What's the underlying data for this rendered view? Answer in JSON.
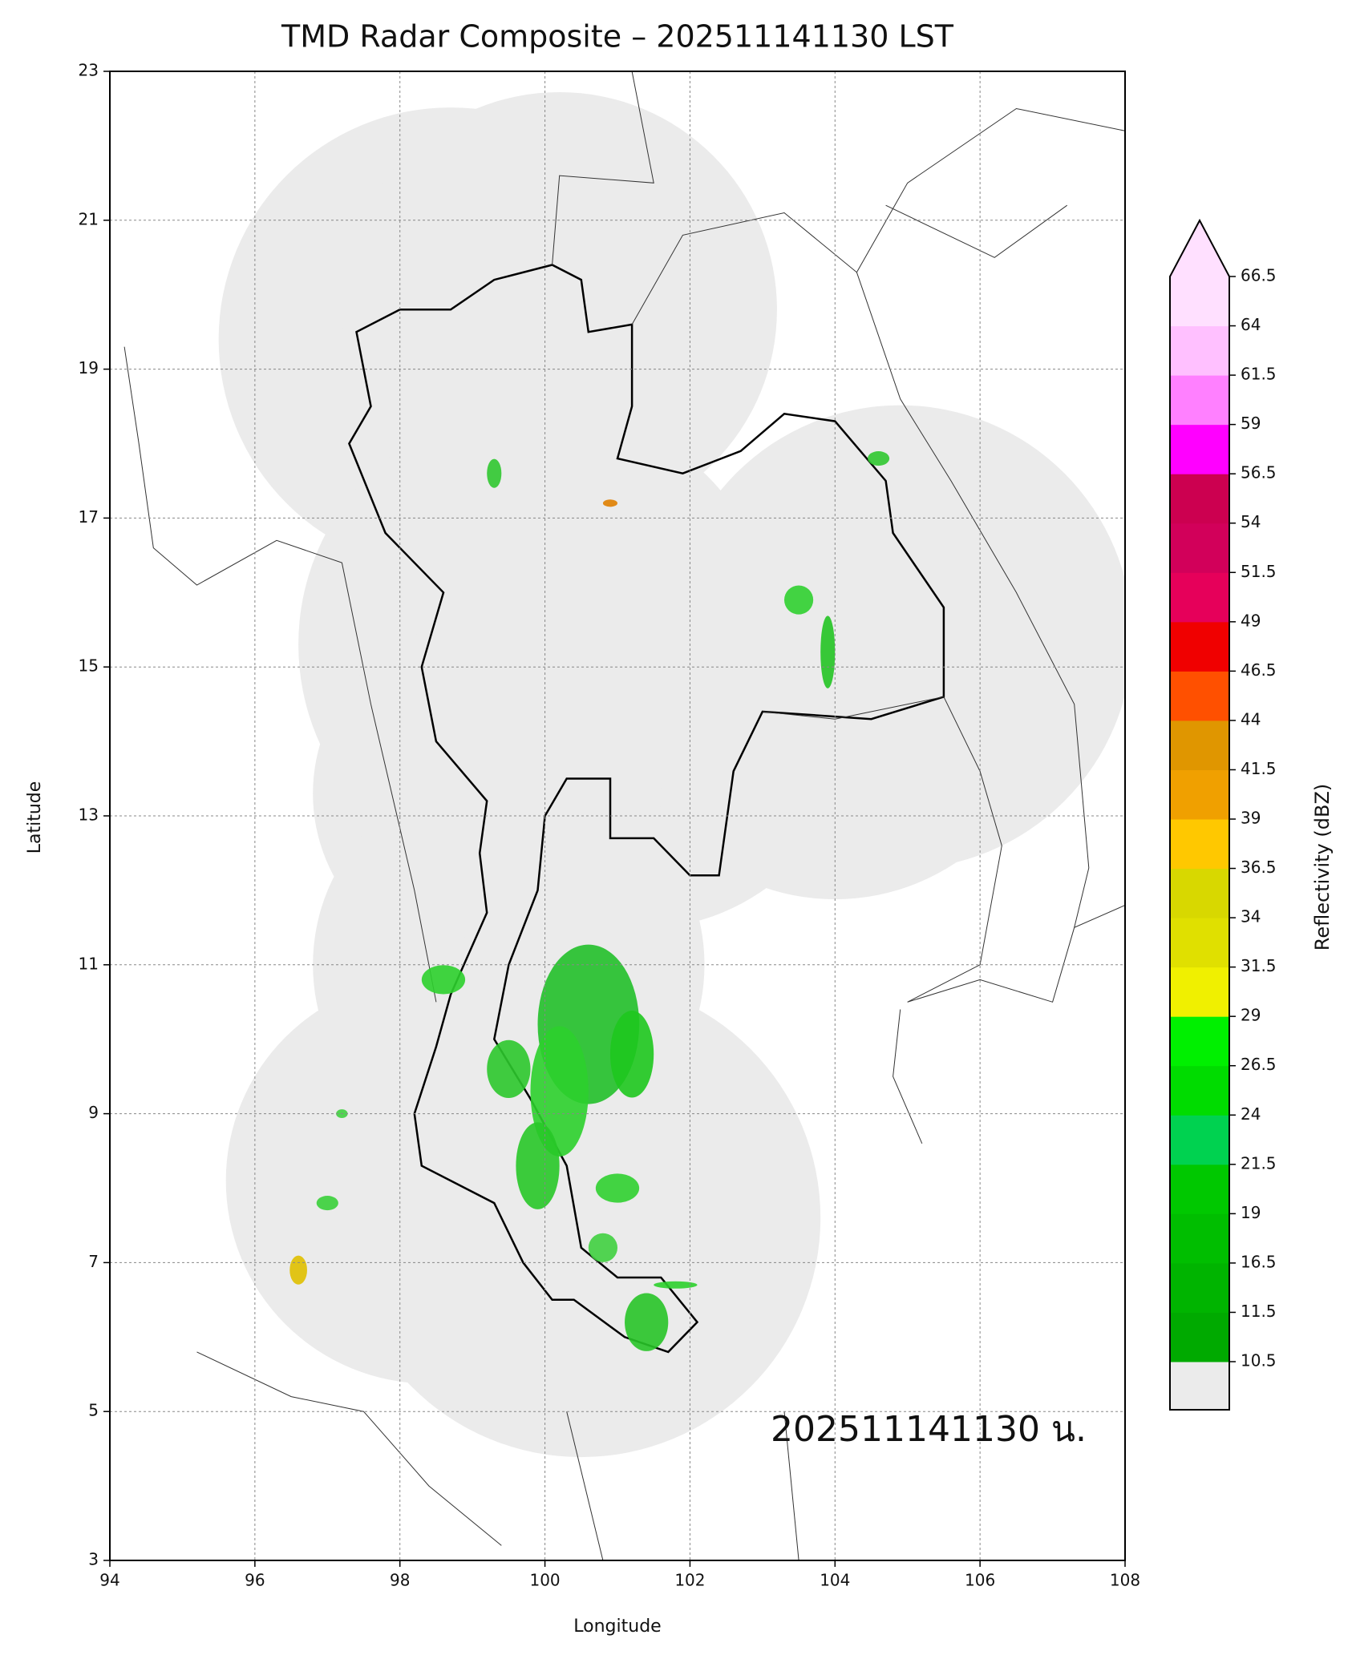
{
  "chart_data": {
    "type": "map",
    "title": "TMD Radar Composite – 202511141130 LST",
    "x_label": "Longitude",
    "y_label": "Latitude",
    "xlim": [
      94,
      108
    ],
    "ylim": [
      3,
      23
    ],
    "xticks": [
      94,
      96,
      98,
      100,
      102,
      104,
      106,
      108
    ],
    "yticks": [
      3,
      5,
      7,
      9,
      11,
      13,
      15,
      17,
      19,
      21,
      23
    ],
    "grid": true,
    "annotation": "202511141130 น.",
    "colorbar": {
      "label": "Reflectivity (dBZ)",
      "ticks": [
        10.5,
        11.5,
        16.5,
        19.0,
        21.5,
        24.0,
        26.5,
        29.0,
        31.5,
        34.0,
        36.5,
        39.0,
        41.5,
        44.0,
        46.5,
        49.0,
        51.5,
        54.0,
        56.5,
        59.0,
        61.5,
        64.0,
        66.5
      ],
      "colors": [
        "#00aa00",
        "#00b400",
        "#00be00",
        "#00c800",
        "#00d250",
        "#00dc00",
        "#00f000",
        "#f0f000",
        "#e0e000",
        "#d8d800",
        "#ffc800",
        "#f0a000",
        "#e09600",
        "#ff5000",
        "#f00000",
        "#e6005a",
        "#d2005a",
        "#cc0050",
        "#ff00ff",
        "#ff80ff",
        "#ffc0ff",
        "#ffe0ff"
      ],
      "under_color": "#ebebeb",
      "over_color": "#ffe0ff"
    }
  }
}
